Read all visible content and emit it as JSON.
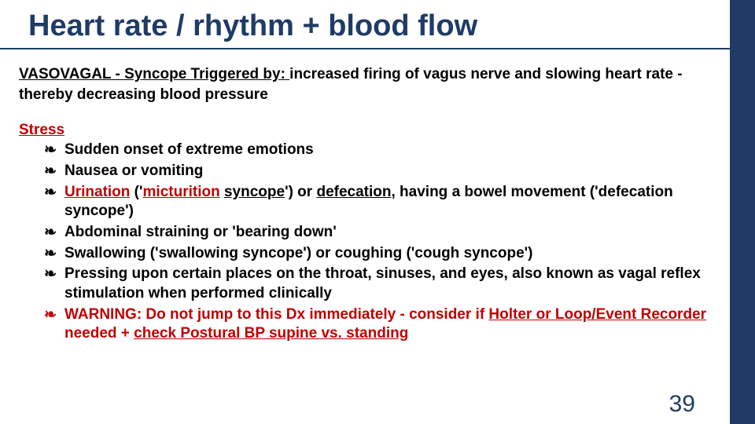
{
  "colors": {
    "accent": "#1f3b66",
    "warn": "#c00000",
    "text": "#000000",
    "bg": "#ffffff"
  },
  "title": "Heart rate / rhythm + blood flow",
  "intro": {
    "lead": "VASOVAGAL - Syncope Triggered by: ",
    "rest": " increased firing of vagus nerve and slowing heart rate - thereby decreasing blood pressure"
  },
  "subhead": "Stress",
  "items": [
    {
      "html": "Sudden onset of extreme emotions"
    },
    {
      "html": "Nausea or vomiting"
    },
    {
      "html": "<span class='u' style='color:#c00000'>Urination</span> ('<span class='u' style='color:#c00000'>micturition</span> <span class='u'>syncope</span>') or <span class='u'>defecation</span>, having a bowel movement ('defecation syncope')"
    },
    {
      "html": "Abdominal straining or 'bearing down'"
    },
    {
      "html": "Swallowing ('swallowing syncope') or coughing ('cough syncope')"
    },
    {
      "html": "Pressing upon certain places on the throat, sinuses, and eyes, also known as vagal reflex stimulation when performed clinically"
    },
    {
      "html": "WARNING:  Do not jump to this Dx  immediately - consider if <span class='u'>Holter or Loop/Event Recorder</span> needed + <span class='u'>check Postural BP supine vs. standing</span>",
      "color": "#c00000"
    }
  ],
  "page_number": "39"
}
